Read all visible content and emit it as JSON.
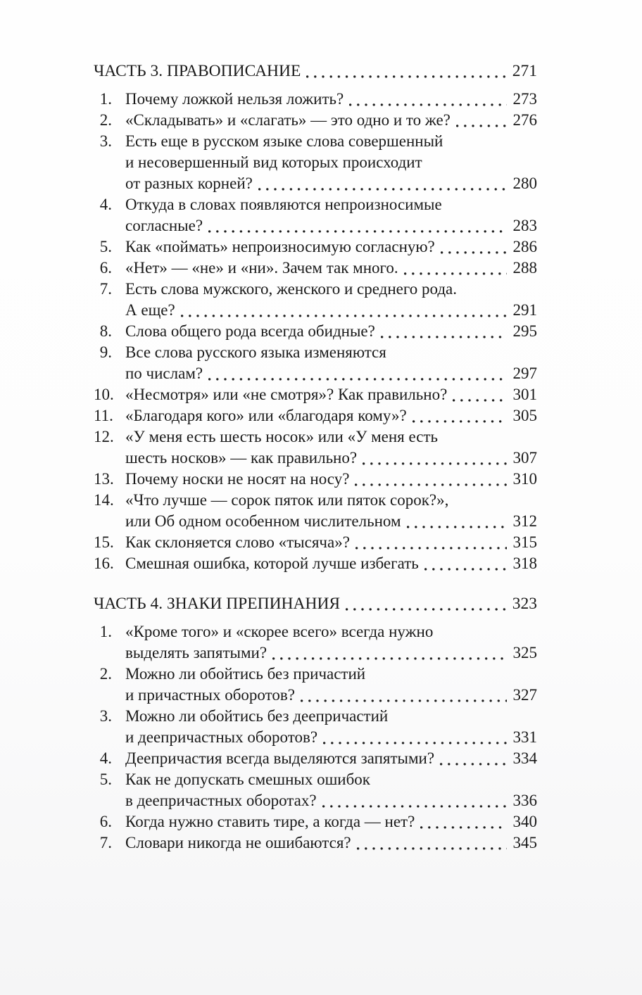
{
  "document": {
    "kind": "table-of-contents",
    "sections": [
      {
        "title": "ЧАСТЬ 3. ПРАВОПИСАНИЕ",
        "page": "271",
        "items": [
          {
            "num": "1.",
            "lines": [
              "Почему ложкой нельзя ложить?"
            ],
            "page": "273"
          },
          {
            "num": "2.",
            "lines": [
              "«Складывать» и «слагать» — это одно и то же?"
            ],
            "page": "276"
          },
          {
            "num": "3.",
            "lines": [
              "Есть еще в русском языке слова совершенный",
              "и несовершенный вид которых происходит",
              "от разных корней?"
            ],
            "page": "280"
          },
          {
            "num": "4.",
            "lines": [
              "Откуда в словах появляются непроизносимые",
              "согласные?"
            ],
            "page": "283"
          },
          {
            "num": "5.",
            "lines": [
              "Как «поймать» непроизносимую согласную?"
            ],
            "page": "286"
          },
          {
            "num": "6.",
            "lines": [
              "«Нет» — «не» и «ни». Зачем так много."
            ],
            "page": "288"
          },
          {
            "num": "7.",
            "lines": [
              "Есть слова мужского, женского и среднего рода.",
              "А еще?"
            ],
            "page": "291"
          },
          {
            "num": "8.",
            "lines": [
              "Слова общего рода всегда обидные?"
            ],
            "page": "295"
          },
          {
            "num": "9.",
            "lines": [
              "Все слова русского языка изменяются",
              "по числам?"
            ],
            "page": "297"
          },
          {
            "num": "10.",
            "lines": [
              "«Несмотря» или «не смотря»? Как правильно?"
            ],
            "page": "301"
          },
          {
            "num": "11.",
            "lines": [
              "«Благодаря кого» или «благодаря кому»?"
            ],
            "page": "305"
          },
          {
            "num": "12.",
            "lines": [
              "«У меня есть шесть носок» или «У меня есть",
              "шесть носков» — как правильно?"
            ],
            "page": "307"
          },
          {
            "num": "13.",
            "lines": [
              "Почему носки не носят на носу?"
            ],
            "page": "310"
          },
          {
            "num": "14.",
            "lines": [
              "«Что лучше — сорок пяток или пяток сорок?»,",
              "или Об одном особенном числительном"
            ],
            "page": "312"
          },
          {
            "num": "15.",
            "lines": [
              "Как склоняется слово «тысяча»?"
            ],
            "page": "315"
          },
          {
            "num": "16.",
            "lines": [
              "Смешная ошибка, которой лучше избегать"
            ],
            "page": "318"
          }
        ]
      },
      {
        "title": "ЧАСТЬ 4. ЗНАКИ ПРЕПИНАНИЯ",
        "page": "323",
        "items": [
          {
            "num": "1.",
            "lines": [
              "«Кроме того» и «скорее всего» всегда нужно",
              "выделять запятыми?"
            ],
            "page": "325"
          },
          {
            "num": "2.",
            "lines": [
              "Можно ли обойтись без причастий",
              "и причастных оборотов?"
            ],
            "page": "327"
          },
          {
            "num": "3.",
            "lines": [
              "Можно ли обойтись без деепричастий",
              "и деепричастных оборотов?"
            ],
            "page": "331"
          },
          {
            "num": "4.",
            "lines": [
              "Деепричастия всегда выделяются запятыми?"
            ],
            "page": "334"
          },
          {
            "num": "5.",
            "lines": [
              "Как не допускать смешных ошибок",
              "в деепричастных оборотах?"
            ],
            "page": "336"
          },
          {
            "num": "6.",
            "lines": [
              "Когда нужно ставить тире, а когда — нет?"
            ],
            "page": "340"
          },
          {
            "num": "7.",
            "lines": [
              "Словари никогда не ошибаются?"
            ],
            "page": "345"
          }
        ]
      }
    ]
  }
}
